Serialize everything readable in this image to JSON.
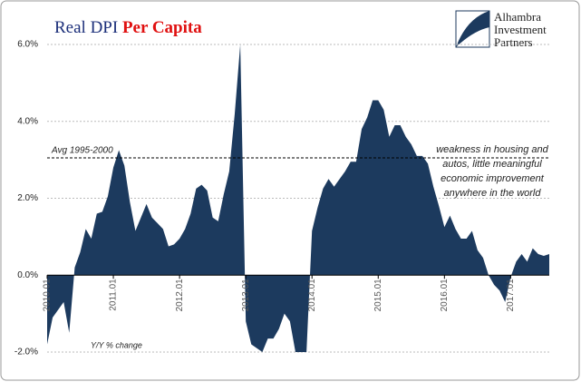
{
  "chart_data": {
    "type": "area",
    "title": "Real DPI",
    "title_highlight": "Per Capita",
    "logo": [
      "Alhambra",
      "Investment",
      "Partners"
    ],
    "y_axis_note": "Y/Y % change",
    "reference_line": {
      "value": 3.05,
      "label": "Avg 1995-2000"
    },
    "annotation": [
      "weakness in housing and",
      "autos, little meaningful",
      "economic improvement",
      "anywhere in the world"
    ],
    "color": "#1c3a5e",
    "categories": [
      "2010.01",
      null,
      null,
      null,
      null,
      null,
      null,
      null,
      null,
      null,
      null,
      null,
      "2011.01",
      null,
      null,
      null,
      null,
      null,
      null,
      null,
      null,
      null,
      null,
      null,
      "2012.01",
      null,
      null,
      null,
      null,
      null,
      null,
      null,
      null,
      null,
      null,
      null,
      "2013.01",
      null,
      null,
      null,
      null,
      null,
      null,
      null,
      null,
      null,
      null,
      null,
      "2014.01",
      null,
      null,
      null,
      null,
      null,
      null,
      null,
      null,
      null,
      null,
      null,
      "2015.01",
      null,
      null,
      null,
      null,
      null,
      null,
      null,
      null,
      null,
      null,
      null,
      "2016.01",
      null,
      null,
      null,
      null,
      null,
      null,
      null,
      null,
      null,
      null,
      null,
      "2017.01",
      null,
      null,
      null,
      null,
      null,
      null,
      null
    ],
    "values": [
      -1.8,
      -1.1,
      -0.9,
      -0.7,
      -1.5,
      0.2,
      0.6,
      1.2,
      0.95,
      1.6,
      1.65,
      2.05,
      2.8,
      3.25,
      2.85,
      1.9,
      1.15,
      1.5,
      1.85,
      1.5,
      1.35,
      1.2,
      0.75,
      0.8,
      0.95,
      1.2,
      1.6,
      2.25,
      2.35,
      2.2,
      1.5,
      1.4,
      2.1,
      2.7,
      4.2,
      6.0,
      -1.2,
      -1.8,
      -1.9,
      -2.0,
      -1.65,
      -1.65,
      -1.4,
      -1.0,
      -1.2,
      -2.0,
      -2.0,
      -2.0,
      1.15,
      1.75,
      2.25,
      2.5,
      2.3,
      2.5,
      2.7,
      2.95,
      2.95,
      3.8,
      4.1,
      4.55,
      4.55,
      4.3,
      3.6,
      3.9,
      3.9,
      3.6,
      3.4,
      3.1,
      3.1,
      2.9,
      2.3,
      1.8,
      1.25,
      1.55,
      1.2,
      0.95,
      0.95,
      1.15,
      0.65,
      0.45,
      0.0,
      -0.25,
      -0.4,
      -0.7,
      -0.05,
      0.35,
      0.55,
      0.35,
      0.7,
      0.55,
      0.5,
      0.55
    ],
    "ylim": [
      -2,
      6
    ],
    "yticks": [
      {
        "value": -2,
        "label": "-2.0%"
      },
      {
        "value": 0,
        "label": "0.0%"
      },
      {
        "value": 2,
        "label": "2.0%"
      },
      {
        "value": 4,
        "label": "4.0%"
      },
      {
        "value": 6,
        "label": "6.0%"
      }
    ],
    "grid": true
  }
}
